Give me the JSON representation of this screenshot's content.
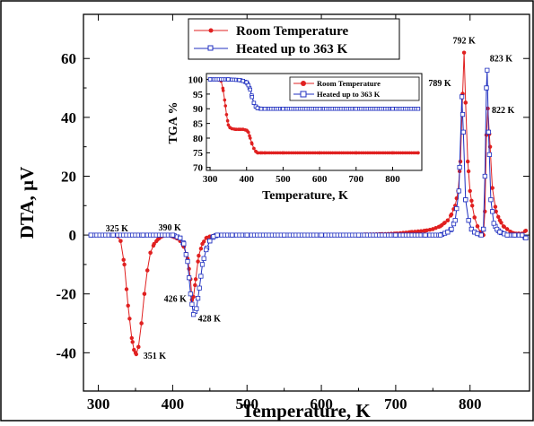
{
  "chart_data": [
    {
      "type": "line",
      "xlabel": "Temperature, K",
      "ylabel": "DTA, µV",
      "xlim": [
        280,
        880
      ],
      "ylim": [
        -53,
        75
      ],
      "x_ticks": [
        300,
        400,
        500,
        600,
        700,
        800
      ],
      "y_ticks": [
        -40,
        -20,
        0,
        20,
        40,
        60
      ],
      "grid": false,
      "legend_position": "top-center",
      "series": [
        {
          "name": "Room Temperature",
          "color": "#e02020",
          "marker": "filled-circle",
          "x": [
            290,
            300,
            320,
            325,
            330,
            335,
            340,
            345,
            348,
            351,
            354,
            358,
            362,
            366,
            370,
            375,
            380,
            385,
            390,
            395,
            400,
            405,
            410,
            415,
            420,
            424,
            426,
            428,
            431,
            435,
            440,
            445,
            450,
            460,
            480,
            500,
            520,
            540,
            560,
            580,
            600,
            620,
            640,
            660,
            680,
            700,
            720,
            740,
            750,
            760,
            765,
            770,
            775,
            780,
            784,
            787,
            790,
            792,
            794,
            797,
            800,
            803,
            806,
            810,
            814,
            818,
            820,
            822,
            824,
            827,
            830,
            835,
            840,
            845,
            850,
            855,
            860,
            865,
            870,
            875
          ],
          "y": [
            0,
            0,
            0,
            0,
            -2,
            -10,
            -24,
            -35,
            -39,
            -40.5,
            -38,
            -30,
            -20,
            -12,
            -6,
            -3,
            -1.5,
            -0.5,
            0,
            0,
            -0.5,
            -1,
            -2,
            -4,
            -8,
            -15,
            -22,
            -21,
            -15,
            -7,
            -3,
            -1,
            -0.5,
            0,
            0,
            0,
            0,
            0,
            0,
            0,
            0,
            0,
            0,
            0.2,
            0.3,
            0.5,
            1,
            1.5,
            2,
            3,
            4,
            5,
            7,
            10,
            15,
            25,
            48,
            62,
            45,
            25,
            15,
            10,
            6,
            3,
            1,
            0,
            8,
            34,
            43,
            30,
            16,
            8,
            5,
            3,
            2,
            1,
            0.5,
            0.5,
            0.5,
            1.5
          ]
        },
        {
          "name": "Heated up to 363 K",
          "color": "#2030c0",
          "marker": "open-square",
          "x": [
            290,
            320,
            360,
            400,
            410,
            415,
            420,
            424,
            428,
            432,
            436,
            440,
            445,
            450,
            455,
            460,
            480,
            500,
            550,
            600,
            650,
            700,
            740,
            760,
            770,
            775,
            780,
            785,
            789,
            791,
            794,
            798,
            802,
            806,
            810,
            815,
            818,
            820,
            822,
            823,
            825,
            828,
            832,
            836,
            840,
            850,
            860,
            870,
            875
          ],
          "y": [
            0,
            0,
            0,
            0,
            -1,
            -3,
            -9,
            -20,
            -27,
            -25,
            -18,
            -10,
            -5,
            -2,
            -0.5,
            0,
            0,
            0,
            0,
            0,
            0,
            0,
            0,
            0,
            1,
            2,
            5,
            15,
            47,
            35,
            12,
            5,
            2,
            1,
            0.5,
            0,
            2,
            20,
            50,
            56,
            35,
            12,
            4,
            2,
            1,
            0,
            0,
            0,
            -1
          ]
        }
      ],
      "annotations": [
        {
          "text": "325 K",
          "x": 325,
          "y": 0
        },
        {
          "text": "390 K",
          "x": 390,
          "y": 0
        },
        {
          "text": "351 K",
          "x": 351,
          "y": -40.5
        },
        {
          "text": "426 K",
          "x": 426,
          "y": -22
        },
        {
          "text": "428 K",
          "x": 428,
          "y": -27
        },
        {
          "text": "792 K",
          "x": 792,
          "y": 62
        },
        {
          "text": "789 K",
          "x": 789,
          "y": 47
        },
        {
          "text": "823 K",
          "x": 823,
          "y": 56
        },
        {
          "text": "822 K",
          "x": 822,
          "y": 43
        }
      ]
    },
    {
      "type": "line",
      "xlabel": "Temperature, K",
      "ylabel": "TGA  %",
      "xlim": [
        290,
        880
      ],
      "ylim": [
        69,
        102
      ],
      "x_ticks": [
        300,
        400,
        500,
        600,
        700,
        800
      ],
      "y_ticks": [
        70,
        75,
        80,
        85,
        90,
        95,
        100
      ],
      "grid": false,
      "legend_position": "top-right",
      "series": [
        {
          "name": "Room Temperature",
          "color": "#e02020",
          "marker": "filled-circle",
          "x": [
            300,
            320,
            330,
            335,
            340,
            345,
            350,
            355,
            360,
            370,
            380,
            390,
            400,
            405,
            410,
            415,
            420,
            425,
            430,
            440,
            450,
            500,
            600,
            700,
            800,
            870
          ],
          "y": [
            100,
            100,
            99.5,
            97,
            93,
            88,
            84.5,
            83.5,
            83.2,
            83,
            83,
            83,
            82.7,
            82,
            80,
            78,
            76.5,
            75.5,
            75,
            75,
            75,
            75,
            75,
            75,
            75,
            75
          ]
        },
        {
          "name": "Heated up to 363 K",
          "color": "#2030c0",
          "marker": "open-square",
          "x": [
            300,
            350,
            380,
            390,
            400,
            405,
            410,
            415,
            420,
            425,
            430,
            440,
            450,
            500,
            600,
            700,
            800,
            870
          ],
          "y": [
            100,
            100,
            99.8,
            99.5,
            99,
            98,
            96.5,
            94,
            92,
            90.8,
            90.2,
            90,
            90,
            90,
            90,
            90,
            90,
            90
          ]
        }
      ]
    }
  ]
}
